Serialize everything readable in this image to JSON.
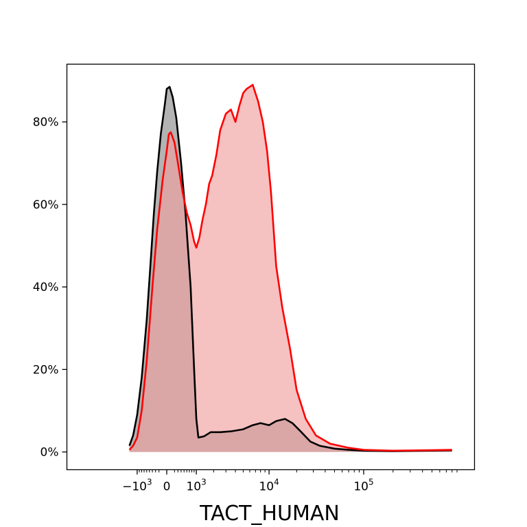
{
  "chart_data": {
    "type": "area",
    "title": "",
    "xlabel": "TACT_HUMAN",
    "ylabel": "",
    "x_scale": "biexponential",
    "x_ticks": [
      {
        "value": -1000,
        "base": "−10",
        "exp": "3"
      },
      {
        "value": 0,
        "base": "0",
        "exp": ""
      },
      {
        "value": 1000,
        "base": "10",
        "exp": "3"
      },
      {
        "value": 10000,
        "base": "10",
        "exp": "4"
      },
      {
        "value": 100000,
        "base": "10",
        "exp": "5"
      }
    ],
    "y_ticks": [
      "0%",
      "20%",
      "40%",
      "60%",
      "80%"
    ],
    "y_tick_values": [
      0,
      20,
      40,
      60,
      80
    ],
    "ylim": [
      -4.3,
      94
    ],
    "grid": false,
    "legend": "none",
    "series": [
      {
        "color": "#000000",
        "fill": "#a0a0a0",
        "points": [
          [
            -1400,
            1.5
          ],
          [
            -1200,
            4
          ],
          [
            -1000,
            9
          ],
          [
            -800,
            18
          ],
          [
            -600,
            32
          ],
          [
            -450,
            47
          ],
          [
            -350,
            58
          ],
          [
            -250,
            68
          ],
          [
            -150,
            77
          ],
          [
            -50,
            84
          ],
          [
            0,
            88
          ],
          [
            70,
            88.5
          ],
          [
            150,
            86
          ],
          [
            250,
            81
          ],
          [
            400,
            70
          ],
          [
            550,
            58
          ],
          [
            750,
            40
          ],
          [
            900,
            20
          ],
          [
            1000,
            8
          ],
          [
            1100,
            3.5
          ],
          [
            1400,
            3.8
          ],
          [
            1800,
            4.8
          ],
          [
            2500,
            4.8
          ],
          [
            3500,
            5
          ],
          [
            5000,
            5.5
          ],
          [
            6500,
            6.5
          ],
          [
            8000,
            7
          ],
          [
            10000,
            6.5
          ],
          [
            12000,
            7.5
          ],
          [
            15000,
            8
          ],
          [
            18000,
            7
          ],
          [
            22000,
            5
          ],
          [
            28000,
            2.5
          ],
          [
            35000,
            1.5
          ],
          [
            50000,
            0.8
          ],
          [
            70000,
            0.5
          ],
          [
            100000,
            0.3
          ],
          [
            200000,
            0.2
          ],
          [
            400000,
            0.3
          ],
          [
            800000,
            0.4
          ]
        ]
      },
      {
        "color": "#ff0000",
        "fill": "#f0a0a0",
        "points": [
          [
            -1400,
            0.5
          ],
          [
            -1200,
            1.5
          ],
          [
            -1000,
            3.5
          ],
          [
            -800,
            10
          ],
          [
            -600,
            22
          ],
          [
            -400,
            40
          ],
          [
            -250,
            54
          ],
          [
            -100,
            66
          ],
          [
            0,
            73
          ],
          [
            50,
            77
          ],
          [
            100,
            77.5
          ],
          [
            200,
            75
          ],
          [
            300,
            70
          ],
          [
            450,
            63
          ],
          [
            600,
            58
          ],
          [
            750,
            55
          ],
          [
            900,
            51
          ],
          [
            1000,
            49.5
          ],
          [
            1150,
            52
          ],
          [
            1300,
            56
          ],
          [
            1500,
            60
          ],
          [
            1700,
            65
          ],
          [
            1900,
            67
          ],
          [
            2200,
            72
          ],
          [
            2500,
            78
          ],
          [
            3000,
            82
          ],
          [
            3500,
            83
          ],
          [
            4000,
            80
          ],
          [
            4500,
            84
          ],
          [
            5000,
            87
          ],
          [
            5500,
            88
          ],
          [
            6500,
            89
          ],
          [
            7500,
            85
          ],
          [
            8500,
            80
          ],
          [
            9500,
            73
          ],
          [
            10500,
            63
          ],
          [
            12000,
            45
          ],
          [
            14000,
            35
          ],
          [
            17000,
            25
          ],
          [
            20000,
            15
          ],
          [
            25000,
            8
          ],
          [
            32000,
            4
          ],
          [
            45000,
            2
          ],
          [
            70000,
            1
          ],
          [
            100000,
            0.5
          ],
          [
            200000,
            0.3
          ],
          [
            800000,
            0.5
          ]
        ]
      }
    ]
  }
}
